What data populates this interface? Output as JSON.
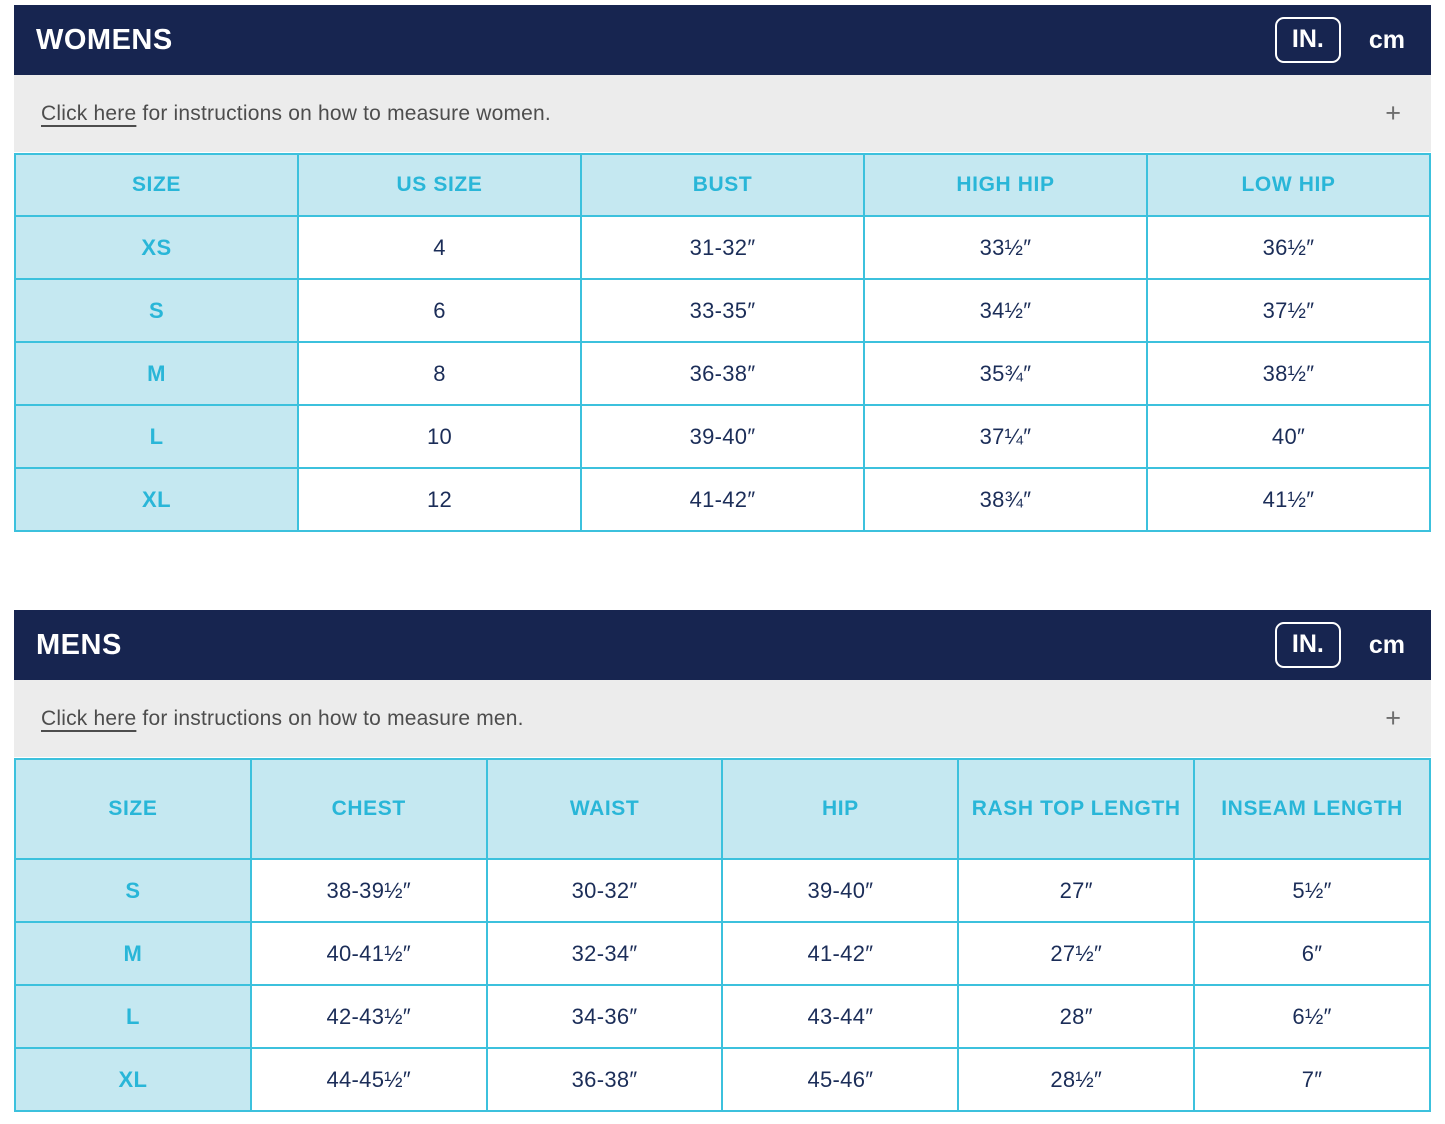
{
  "colors": {
    "navy_header_bg": "#172550",
    "header_title_text": "#ffffff",
    "table_border_cyan": "#3cc1dd",
    "header_cell_bg": "#c5e8f1",
    "accent_cyan_text": "#29b6d8",
    "value_text_navy": "#1b2d58",
    "instructions_bar_bg": "#ececec",
    "instructions_text": "#4d4d4d"
  },
  "womens": {
    "title": "WOMENS",
    "units": {
      "inches": "IN.",
      "centimeters": "cm"
    },
    "instructions": {
      "link": "Click here",
      "rest": " for instructions on how to measure women.",
      "expand_icon": "+"
    },
    "table": {
      "columns": [
        "SIZE",
        "US SIZE",
        "BUST",
        "HIGH HIP",
        "LOW HIP"
      ],
      "rows": [
        [
          "XS",
          "4",
          "31-32″",
          "33½″",
          "36½″"
        ],
        [
          "S",
          "6",
          "33-35″",
          "34½″",
          "37½″"
        ],
        [
          "M",
          "8",
          "36-38″",
          "35¾″",
          "38½″"
        ],
        [
          "L",
          "10",
          "39-40″",
          "37¼″",
          "40″"
        ],
        [
          "XL",
          "12",
          "41-42″",
          "38¾″",
          "41½″"
        ]
      ]
    }
  },
  "mens": {
    "title": "MENS",
    "units": {
      "inches": "IN.",
      "centimeters": "cm"
    },
    "instructions": {
      "link": "Click here",
      "rest": " for instructions on how to measure men.",
      "expand_icon": "+"
    },
    "table": {
      "columns": [
        "SIZE",
        "CHEST",
        "WAIST",
        "HIP",
        "RASH TOP LENGTH",
        "INSEAM LENGTH"
      ],
      "rows": [
        [
          "S",
          "38-39½″",
          "30-32″",
          "39-40″",
          "27″",
          "5½″"
        ],
        [
          "M",
          "40-41½″",
          "32-34″",
          "41-42″",
          "27½″",
          "6″"
        ],
        [
          "L",
          "42-43½″",
          "34-36″",
          "43-44″",
          "28″",
          "6½″"
        ],
        [
          "XL",
          "44-45½″",
          "36-38″",
          "45-46″",
          "28½″",
          "7″"
        ]
      ]
    }
  }
}
